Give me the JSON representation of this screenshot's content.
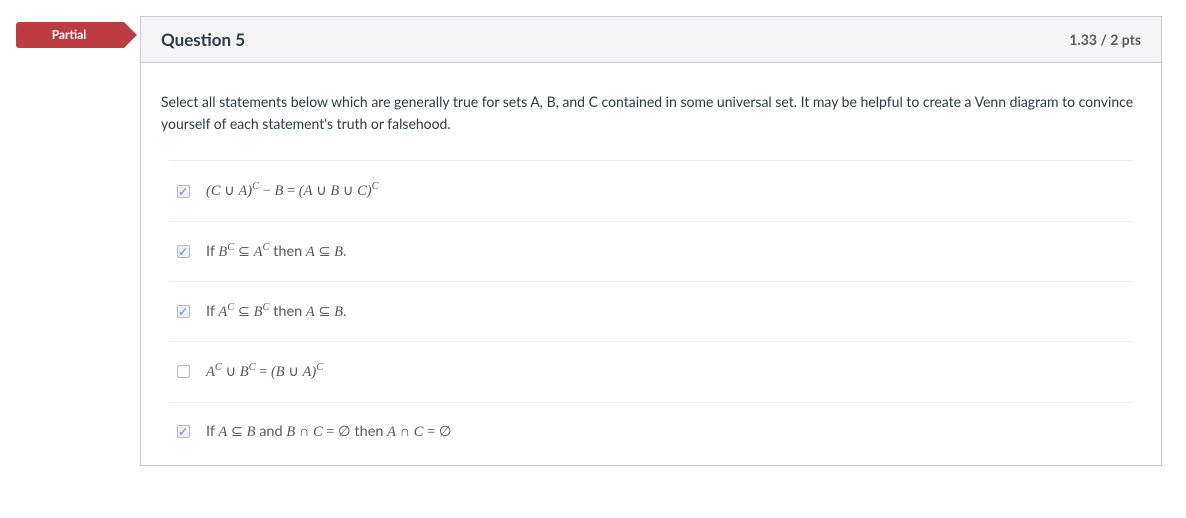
{
  "ribbon": {
    "label": "Partial",
    "bg": "#bd3c41",
    "color": "#ffffff"
  },
  "header": {
    "title": "Question 5",
    "points": "1.33 / 2 pts"
  },
  "prompt": "Select all statements below which are generally true for sets A, B, and C contained in some universal set. It may be helpful to create a Venn diagram to convince yourself of each statement's truth or falsehood.",
  "answers": [
    {
      "checked": true,
      "parts": [
        {
          "t": "ital",
          "v": "(C"
        },
        {
          "t": "op",
          "v": " ∪ "
        },
        {
          "t": "ital",
          "v": "A)"
        },
        {
          "t": "sup",
          "v": "C"
        },
        {
          "t": "op",
          "v": " − "
        },
        {
          "t": "ital",
          "v": "B"
        },
        {
          "t": "op",
          "v": " = "
        },
        {
          "t": "ital",
          "v": "(A"
        },
        {
          "t": "op",
          "v": " ∪ "
        },
        {
          "t": "ital",
          "v": "B"
        },
        {
          "t": "op",
          "v": " ∪ "
        },
        {
          "t": "ital",
          "v": "C)"
        },
        {
          "t": "sup",
          "v": "C"
        }
      ]
    },
    {
      "checked": true,
      "parts": [
        {
          "t": "plain",
          "v": "If "
        },
        {
          "t": "ital",
          "v": "B"
        },
        {
          "t": "sup",
          "v": "C"
        },
        {
          "t": "op",
          "v": " ⊆ "
        },
        {
          "t": "ital",
          "v": "A"
        },
        {
          "t": "sup",
          "v": "C"
        },
        {
          "t": "plain",
          "v": " then "
        },
        {
          "t": "ital",
          "v": "A"
        },
        {
          "t": "op",
          "v": " ⊆ "
        },
        {
          "t": "ital",
          "v": "B"
        },
        {
          "t": "plain",
          "v": "."
        }
      ]
    },
    {
      "checked": true,
      "parts": [
        {
          "t": "plain",
          "v": "If "
        },
        {
          "t": "ital",
          "v": "A"
        },
        {
          "t": "sup",
          "v": "C"
        },
        {
          "t": "op",
          "v": " ⊆ "
        },
        {
          "t": "ital",
          "v": "B"
        },
        {
          "t": "sup",
          "v": "C"
        },
        {
          "t": "plain",
          "v": " then "
        },
        {
          "t": "ital",
          "v": "A"
        },
        {
          "t": "op",
          "v": " ⊆ "
        },
        {
          "t": "ital",
          "v": "B"
        },
        {
          "t": "plain",
          "v": "."
        }
      ]
    },
    {
      "checked": false,
      "parts": [
        {
          "t": "ital",
          "v": "A"
        },
        {
          "t": "sup",
          "v": "C"
        },
        {
          "t": "op",
          "v": " ∪ "
        },
        {
          "t": "ital",
          "v": "B"
        },
        {
          "t": "sup",
          "v": "C"
        },
        {
          "t": "op",
          "v": " = "
        },
        {
          "t": "ital",
          "v": "(B"
        },
        {
          "t": "op",
          "v": " ∪ "
        },
        {
          "t": "ital",
          "v": "A)"
        },
        {
          "t": "sup",
          "v": "C"
        }
      ]
    },
    {
      "checked": true,
      "parts": [
        {
          "t": "plain",
          "v": "If "
        },
        {
          "t": "ital",
          "v": "A"
        },
        {
          "t": "op",
          "v": " ⊆ "
        },
        {
          "t": "ital",
          "v": "B"
        },
        {
          "t": "plain",
          "v": " and "
        },
        {
          "t": "ital",
          "v": "B"
        },
        {
          "t": "op",
          "v": " ∩ "
        },
        {
          "t": "ital",
          "v": "C"
        },
        {
          "t": "op",
          "v": " = "
        },
        {
          "t": "empt",
          "v": "∅"
        },
        {
          "t": "plain",
          "v": " then "
        },
        {
          "t": "ital",
          "v": "A"
        },
        {
          "t": "op",
          "v": " ∩ "
        },
        {
          "t": "ital",
          "v": "C"
        },
        {
          "t": "op",
          "v": " = "
        },
        {
          "t": "empt",
          "v": "∅"
        }
      ]
    }
  ],
  "styles": {
    "border_color": "#c7cdd1",
    "header_bg": "#f5f5f5",
    "row_border": "#eceeef",
    "text_color": "#2d3b45",
    "muted_color": "#595959",
    "check_color": "#7aa8d6"
  }
}
